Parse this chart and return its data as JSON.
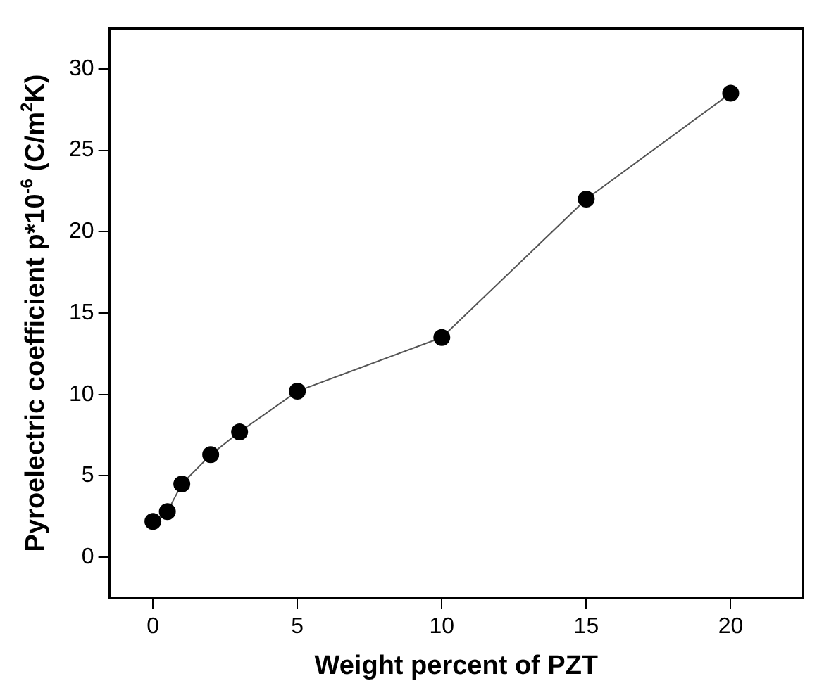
{
  "chart_data": {
    "type": "line",
    "xlabel": "Weight percent of PZT",
    "ylabel": "Pyroelectric coefficient p*10$^{-6}$ (C/m$^{2}$K)",
    "x": [
      0,
      0.5,
      1,
      2,
      3,
      5,
      10,
      15,
      20
    ],
    "series": [
      {
        "color": "#000000",
        "values": [
          2.2,
          2.8,
          4.5,
          6.3,
          7.7,
          10.2,
          13.5,
          22.0,
          28.5
        ]
      }
    ],
    "xlim": [
      -1.5,
      22.5
    ],
    "xticks": [
      0,
      5,
      10,
      15,
      20
    ],
    "ylim": [
      -2.5,
      32.5
    ],
    "yticks": [
      0,
      5,
      10,
      15,
      20,
      25,
      30
    ],
    "marker": "circle",
    "line_style": "solid",
    "grid": false,
    "legend": false
  }
}
